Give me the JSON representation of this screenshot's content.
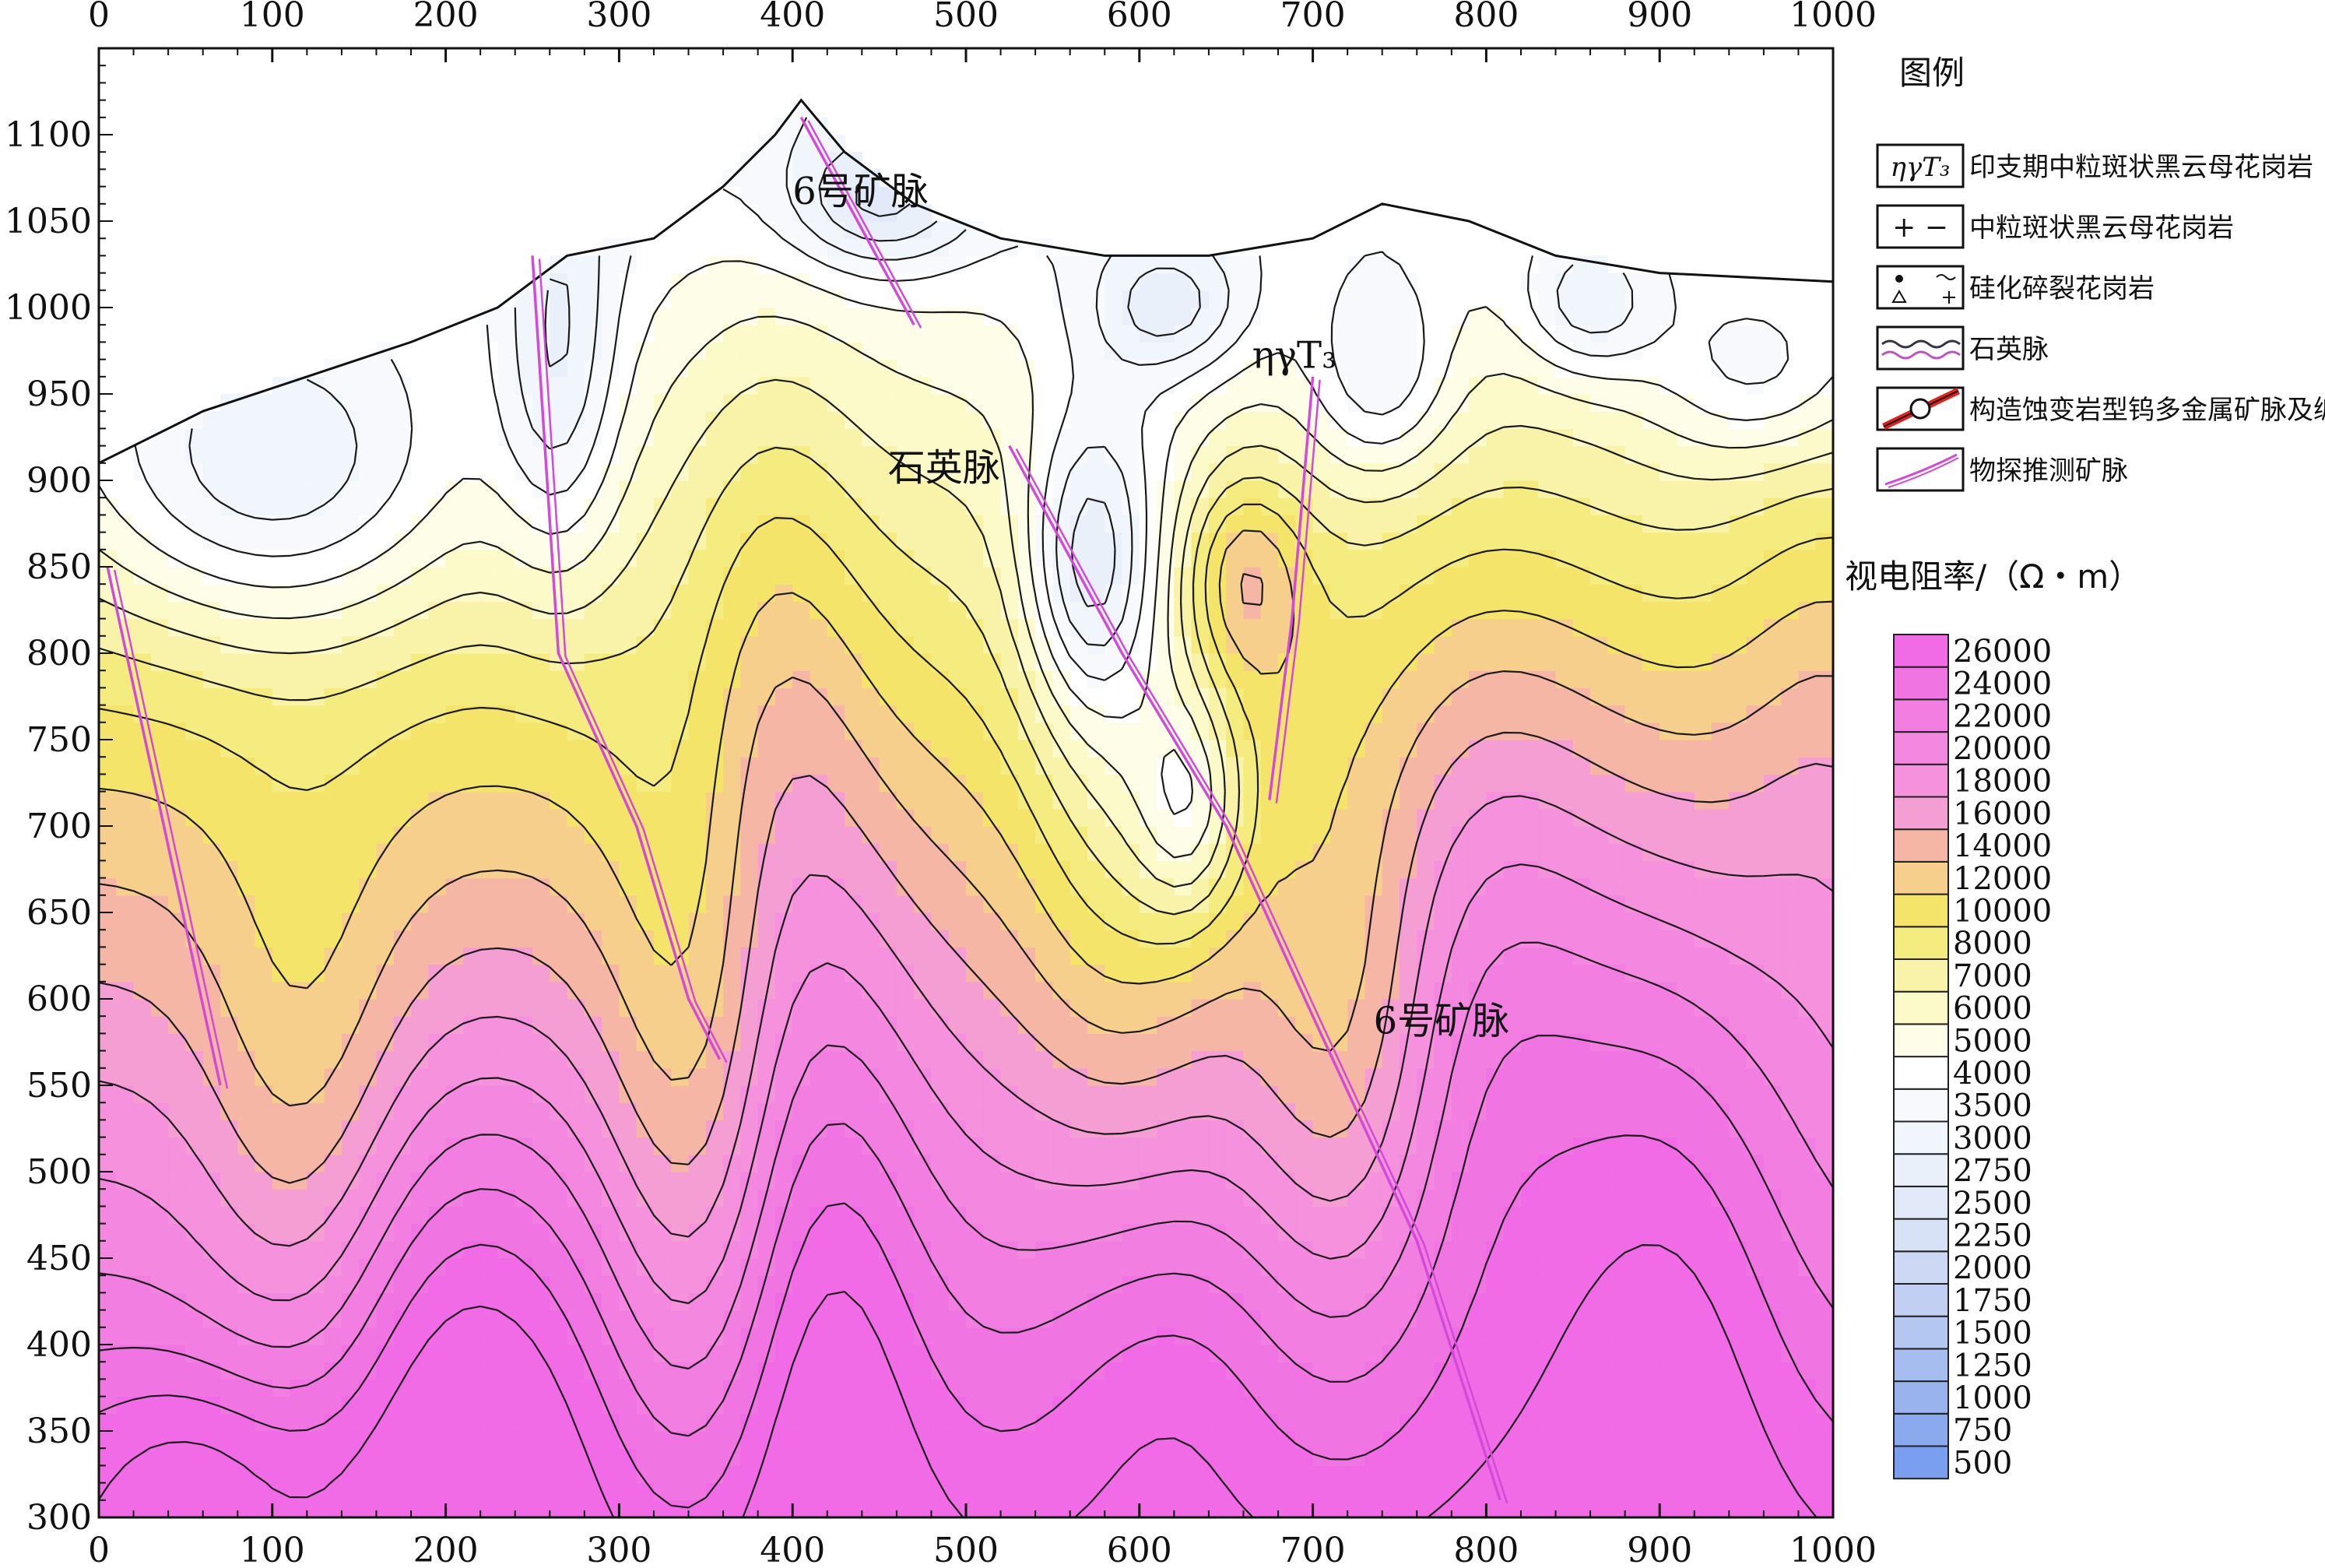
{
  "chart_data": {
    "type": "heatmap",
    "subtype": "filled-contour-section",
    "x_ticks": [
      0,
      100,
      200,
      300,
      400,
      500,
      600,
      700,
      800,
      900,
      1000
    ],
    "y_ticks": [
      300,
      350,
      400,
      450,
      500,
      550,
      600,
      650,
      700,
      750,
      800,
      850,
      900,
      950,
      1000,
      1050,
      1100
    ],
    "xlim": [
      0,
      1000
    ],
    "ylim": [
      300,
      1150
    ],
    "surface_profile": [
      [
        0,
        910
      ],
      [
        60,
        940
      ],
      [
        120,
        960
      ],
      [
        180,
        980
      ],
      [
        230,
        1000
      ],
      [
        270,
        1030
      ],
      [
        320,
        1040
      ],
      [
        360,
        1070
      ],
      [
        390,
        1100
      ],
      [
        405,
        1120
      ],
      [
        430,
        1090
      ],
      [
        470,
        1060
      ],
      [
        520,
        1040
      ],
      [
        580,
        1030
      ],
      [
        640,
        1030
      ],
      [
        700,
        1040
      ],
      [
        740,
        1060
      ],
      [
        790,
        1050
      ],
      [
        840,
        1030
      ],
      [
        900,
        1020
      ],
      [
        1000,
        1015
      ]
    ],
    "colorbar": {
      "title": "视电阻率/（Ω・m）",
      "levels": [
        "500",
        "750",
        "1000",
        "1250",
        "1500",
        "1750",
        "2000",
        "2250",
        "2500",
        "2750",
        "3000",
        "3500",
        "4000",
        "5000",
        "6000",
        "7000",
        "8000",
        "10000",
        "12000",
        "14000",
        "16000",
        "18000",
        "20000",
        "22000",
        "24000",
        "26000"
      ],
      "colors": [
        "#7b9ff0",
        "#8aa9ef",
        "#98b3ee",
        "#a6bdef",
        "#b4c7f1",
        "#c1d0f2",
        "#cdd9f4",
        "#d8e2f6",
        "#e2e9f8",
        "#eaf0fa",
        "#f1f5fc",
        "#f7f9fd",
        "#ffffff",
        "#fdfde8",
        "#fbfac8",
        "#f8f3a8",
        "#f5ec80",
        "#f4e56a",
        "#f7cf8c",
        "#f6b6a6",
        "#f59ed4",
        "#f591dd",
        "#f488e0",
        "#f37ee2",
        "#f174e3",
        "#f06be5"
      ]
    },
    "legend": {
      "title": "图例",
      "items": [
        {
          "symbol": "ηγT₃",
          "label": "印支期中粒斑状黑云母花岗岩"
        },
        {
          "symbol": "+ −",
          "label": "中粒斑状黑云母花岗岩"
        },
        {
          "symbol": "breccia",
          "label": "硅化碎裂花岗岩"
        },
        {
          "symbol": "quartz-vein",
          "label": "石英脉"
        },
        {
          "symbol": "ore-vein",
          "label": "构造蚀变岩型钨多金属矿脉及编号"
        },
        {
          "symbol": "inferred-vein",
          "label": "物探推测矿脉"
        }
      ]
    },
    "annotations": [
      {
        "text": "6号矿脉",
        "x": 400,
        "y": 1060
      },
      {
        "text": "石英脉",
        "x": 455,
        "y": 900
      },
      {
        "text": "6号矿脉",
        "x": 735,
        "y": 580
      },
      {
        "text": "ηγT₃",
        "x": 665,
        "y": 965
      }
    ],
    "inferred_veins": [
      [
        [
          5,
          850
        ],
        [
          70,
          550
        ]
      ],
      [
        [
          250,
          1030
        ],
        [
          265,
          800
        ],
        [
          310,
          700
        ],
        [
          340,
          600
        ],
        [
          358,
          565
        ]
      ],
      [
        [
          405,
          1110
        ],
        [
          470,
          990
        ]
      ],
      [
        [
          525,
          920
        ],
        [
          590,
          800
        ],
        [
          650,
          700
        ],
        [
          700,
          590
        ],
        [
          760,
          460
        ],
        [
          808,
          310
        ]
      ],
      [
        [
          700,
          960
        ],
        [
          688,
          820
        ],
        [
          675,
          715
        ]
      ]
    ]
  },
  "colors": {
    "contour_line": "#1a1a1a",
    "vein": "#d24bd8",
    "axis": "#111111"
  }
}
